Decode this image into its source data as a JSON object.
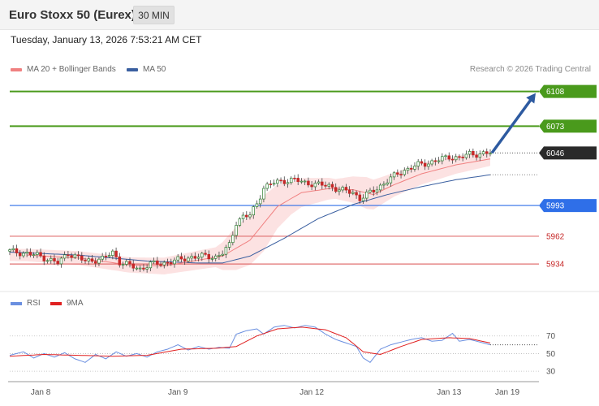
{
  "header": {
    "title": "Euro Stoxx 50 (Eurex)",
    "interval": "30 MIN",
    "datetime": "Tuesday, January 13, 2026 7:53:21 AM CET"
  },
  "legend": {
    "ma20": "MA 20 + Bollinger Bands",
    "ma50": "MA 50",
    "copyright": "Research © 2026 Trading Central"
  },
  "rsi_legend": {
    "rsi": "RSI",
    "ma9": "9MA"
  },
  "colors": {
    "ma20": "#f08080",
    "ma50": "#3a5fa0",
    "bollinger_fill": "#fbd8d8",
    "candle_up": "#2e7d32",
    "candle_down": "#c62828",
    "resistance": "#4a9a1c",
    "pivot": "#2f6fe8",
    "support": "#e07070",
    "arrow": "#2d5aa0",
    "last_price": "#2a2a2a",
    "rsi": "#6a8fe0",
    "rsi_ma": "#e02020"
  },
  "chart_data": [
    {
      "type": "candlestick",
      "title": "Euro Stoxx 50 (Eurex)",
      "interval": "30 MIN",
      "ylim": [
        5912,
        6120
      ],
      "x_ticks": [
        "Jan 8",
        "Jan 9",
        "Jan 12",
        "Jan 13",
        "Jan 19"
      ],
      "levels": [
        {
          "value": 6108,
          "label": "6108",
          "role": "resistance"
        },
        {
          "value": 6073,
          "label": "6073",
          "role": "resistance"
        },
        {
          "value": 6046,
          "label": "6046",
          "role": "last"
        },
        {
          "value": 5993,
          "label": "5993",
          "role": "pivot"
        },
        {
          "value": 5962,
          "label": "5962",
          "role": "support"
        },
        {
          "value": 5934,
          "label": "5934",
          "role": "support"
        }
      ],
      "forecast_arrow": {
        "from": 6046,
        "to": 6108
      },
      "indicators": [
        "MA 20 + Bollinger Bands",
        "MA 50"
      ],
      "price_path": [
        [
          0,
          5947
        ],
        [
          8,
          5943
        ],
        [
          14,
          5935
        ],
        [
          17,
          5945
        ],
        [
          22,
          5937
        ],
        [
          27,
          5939
        ],
        [
          30,
          5946
        ],
        [
          32,
          5936
        ],
        [
          38,
          5929
        ],
        [
          41,
          5934
        ],
        [
          45,
          5935
        ],
        [
          49,
          5938
        ],
        [
          53,
          5941
        ],
        [
          57,
          5942
        ],
        [
          60,
          5941
        ],
        [
          62,
          5945
        ],
        [
          64,
          5953
        ],
        [
          66,
          5976
        ],
        [
          68,
          5982
        ],
        [
          70,
          5983
        ],
        [
          72,
          5995
        ],
        [
          74,
          6011
        ],
        [
          77,
          6016
        ],
        [
          80,
          6018
        ],
        [
          83,
          6019
        ],
        [
          86,
          6016
        ],
        [
          90,
          6014
        ],
        [
          93,
          6013
        ],
        [
          96,
          6009
        ],
        [
          100,
          6006
        ],
        [
          102,
          6000
        ],
        [
          104,
          6004
        ],
        [
          107,
          6010
        ],
        [
          110,
          6018
        ],
        [
          113,
          6025
        ],
        [
          116,
          6030
        ],
        [
          119,
          6034
        ],
        [
          122,
          6036
        ],
        [
          125,
          6039
        ],
        [
          128,
          6042
        ],
        [
          131,
          6041
        ],
        [
          134,
          6045
        ],
        [
          137,
          6045
        ],
        [
          140,
          6046
        ]
      ],
      "ma50_path": [
        [
          0,
          5946
        ],
        [
          20,
          5943
        ],
        [
          40,
          5937
        ],
        [
          55,
          5935
        ],
        [
          62,
          5935
        ],
        [
          70,
          5942
        ],
        [
          80,
          5960
        ],
        [
          90,
          5980
        ],
        [
          100,
          5994
        ],
        [
          110,
          6004
        ],
        [
          120,
          6012
        ],
        [
          130,
          6019
        ],
        [
          140,
          6024
        ]
      ],
      "ma20_path": [
        [
          5,
          5943
        ],
        [
          20,
          5940
        ],
        [
          35,
          5933
        ],
        [
          45,
          5932
        ],
        [
          55,
          5938
        ],
        [
          62,
          5942
        ],
        [
          70,
          5958
        ],
        [
          78,
          5992
        ],
        [
          85,
          6006
        ],
        [
          93,
          6010
        ],
        [
          100,
          6009
        ],
        [
          106,
          6004
        ],
        [
          112,
          6014
        ],
        [
          120,
          6025
        ],
        [
          130,
          6034
        ],
        [
          140,
          6040
        ]
      ],
      "band_width": [
        [
          0,
          6
        ],
        [
          40,
          8
        ],
        [
          60,
          10
        ],
        [
          66,
          22
        ],
        [
          74,
          28
        ],
        [
          82,
          16
        ],
        [
          95,
          10
        ],
        [
          104,
          16
        ],
        [
          112,
          12
        ],
        [
          125,
          10
        ],
        [
          140,
          7
        ]
      ]
    },
    {
      "type": "line",
      "title": "RSI",
      "ylim": [
        20,
        90
      ],
      "y_ticks": [
        30,
        50,
        70
      ],
      "series": [
        {
          "name": "RSI",
          "values": [
            [
              0,
              48
            ],
            [
              4,
              52
            ],
            [
              7,
              45
            ],
            [
              10,
              50
            ],
            [
              13,
              46
            ],
            [
              16,
              51
            ],
            [
              19,
              44
            ],
            [
              22,
              40
            ],
            [
              25,
              49
            ],
            [
              28,
              44
            ],
            [
              31,
              52
            ],
            [
              34,
              47
            ],
            [
              37,
              50
            ],
            [
              40,
              46
            ],
            [
              43,
              52
            ],
            [
              46,
              55
            ],
            [
              49,
              60
            ],
            [
              52,
              54
            ],
            [
              55,
              58
            ],
            [
              58,
              55
            ],
            [
              61,
              57
            ],
            [
              64,
              56
            ],
            [
              66,
              72
            ],
            [
              69,
              76
            ],
            [
              72,
              78
            ],
            [
              74,
              72
            ],
            [
              77,
              80
            ],
            [
              80,
              82
            ],
            [
              83,
              79
            ],
            [
              86,
              82
            ],
            [
              89,
              80
            ],
            [
              92,
              72
            ],
            [
              95,
              66
            ],
            [
              98,
              62
            ],
            [
              101,
              58
            ],
            [
              103,
              45
            ],
            [
              105,
              40
            ],
            [
              108,
              55
            ],
            [
              111,
              60
            ],
            [
              114,
              63
            ],
            [
              117,
              66
            ],
            [
              120,
              68
            ],
            [
              123,
              64
            ],
            [
              126,
              65
            ],
            [
              129,
              73
            ],
            [
              131,
              64
            ],
            [
              134,
              66
            ],
            [
              137,
              63
            ],
            [
              140,
              60
            ]
          ]
        },
        {
          "name": "9MA",
          "values": [
            [
              0,
              47
            ],
            [
              10,
              49
            ],
            [
              20,
              48
            ],
            [
              30,
              47
            ],
            [
              40,
              48
            ],
            [
              50,
              55
            ],
            [
              60,
              56
            ],
            [
              66,
              58
            ],
            [
              72,
              70
            ],
            [
              78,
              78
            ],
            [
              85,
              80
            ],
            [
              92,
              77
            ],
            [
              98,
              68
            ],
            [
              103,
              52
            ],
            [
              108,
              49
            ],
            [
              114,
              58
            ],
            [
              120,
              66
            ],
            [
              128,
              68
            ],
            [
              134,
              67
            ],
            [
              140,
              62
            ]
          ]
        }
      ],
      "reference": [
        {
          "value": 60,
          "role": "last"
        }
      ]
    }
  ]
}
